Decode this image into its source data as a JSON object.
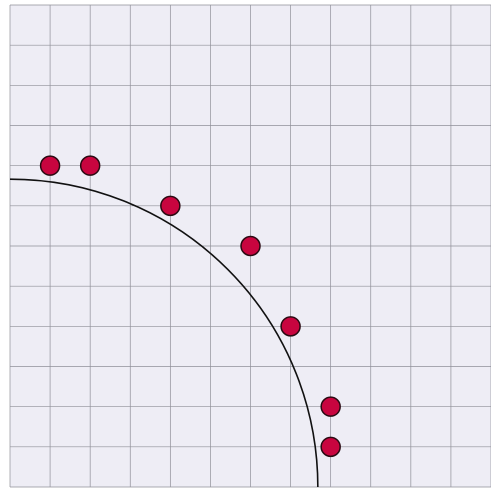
{
  "board": {
    "cols": 12,
    "rows": 12,
    "points": [
      {
        "x": 1,
        "y": 4
      },
      {
        "x": 2,
        "y": 4
      },
      {
        "x": 4,
        "y": 5
      },
      {
        "x": 6,
        "y": 6
      },
      {
        "x": 7,
        "y": 8
      },
      {
        "x": 8,
        "y": 10
      },
      {
        "x": 8,
        "y": 11
      }
    ],
    "arc": {
      "cx": 0,
      "cy": 12,
      "r": 7.68
    }
  }
}
